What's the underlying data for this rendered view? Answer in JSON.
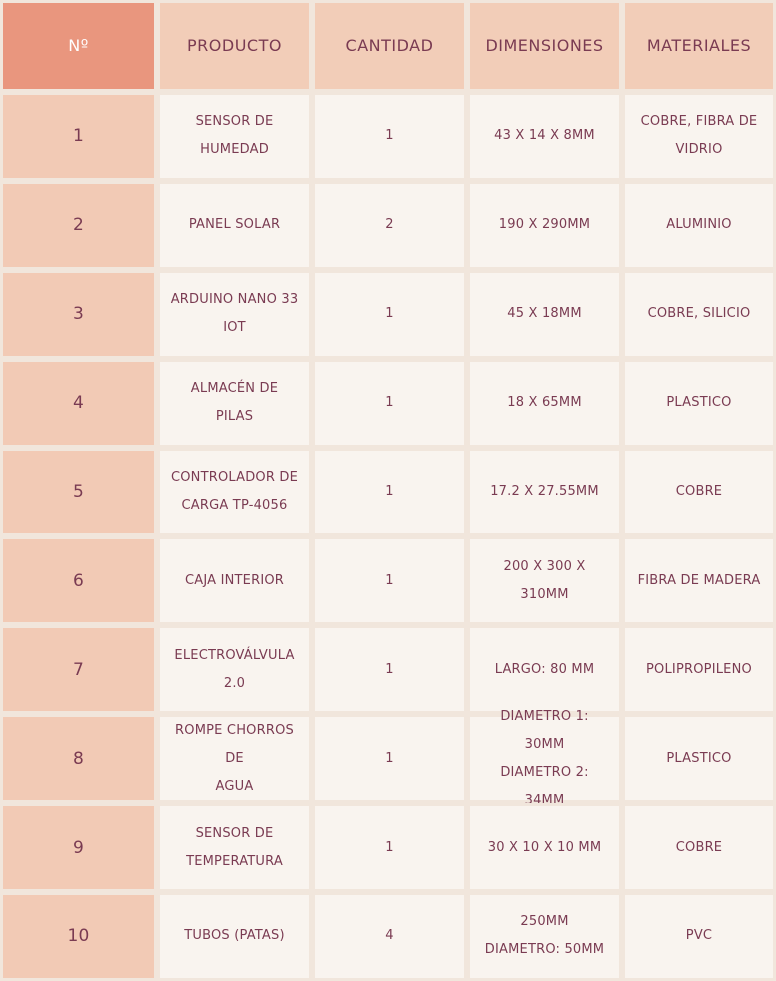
{
  "headers": [
    "Nº",
    "PRODUCTO",
    "CANTIDAD",
    "DIMENSIONES",
    "MATERIALES"
  ],
  "rows": [
    [
      "1",
      "SENSOR DE HUMEDAD",
      "1",
      "43 X 14 X 8MM",
      "COBRE, FIBRA DE\nVIDRIO"
    ],
    [
      "2",
      "PANEL SOLAR",
      "2",
      "190 X 290MM",
      "ALUMINIO"
    ],
    [
      "3",
      "ARDUINO NANO 33 IOT",
      "1",
      "45 X 18MM",
      "COBRE, SILICIO"
    ],
    [
      "4",
      "ALMACÉN DE PILAS",
      "1",
      "18 X 65MM",
      "PLASTICO"
    ],
    [
      "5",
      "CONTROLADOR DE\nCARGA TP-4056",
      "1",
      "17.2 X 27.55MM",
      "COBRE"
    ],
    [
      "6",
      "CAJA INTERIOR",
      "1",
      "200 X 300 X 310MM",
      "FIBRA DE MADERA"
    ],
    [
      "7",
      "ELECTROVÁLVULA 2.0",
      "1",
      "LARGO: 80 MM",
      "POLIPROPILENO"
    ],
    [
      "8",
      "ROMPE CHORROS DE\nAGUA",
      "1",
      "DIAMETRO 1:  30MM\nDIAMETRO 2:   34MM",
      "PLASTICO"
    ],
    [
      "9",
      "SENSOR DE\nTEMPERATURA",
      "1",
      "30 X 10 X 10 MM",
      "COBRE"
    ],
    [
      "10",
      "TUBOS (PATAS)",
      "4",
      "250MM\nDIAMETRO: 50MM",
      "PVC"
    ]
  ]
}
